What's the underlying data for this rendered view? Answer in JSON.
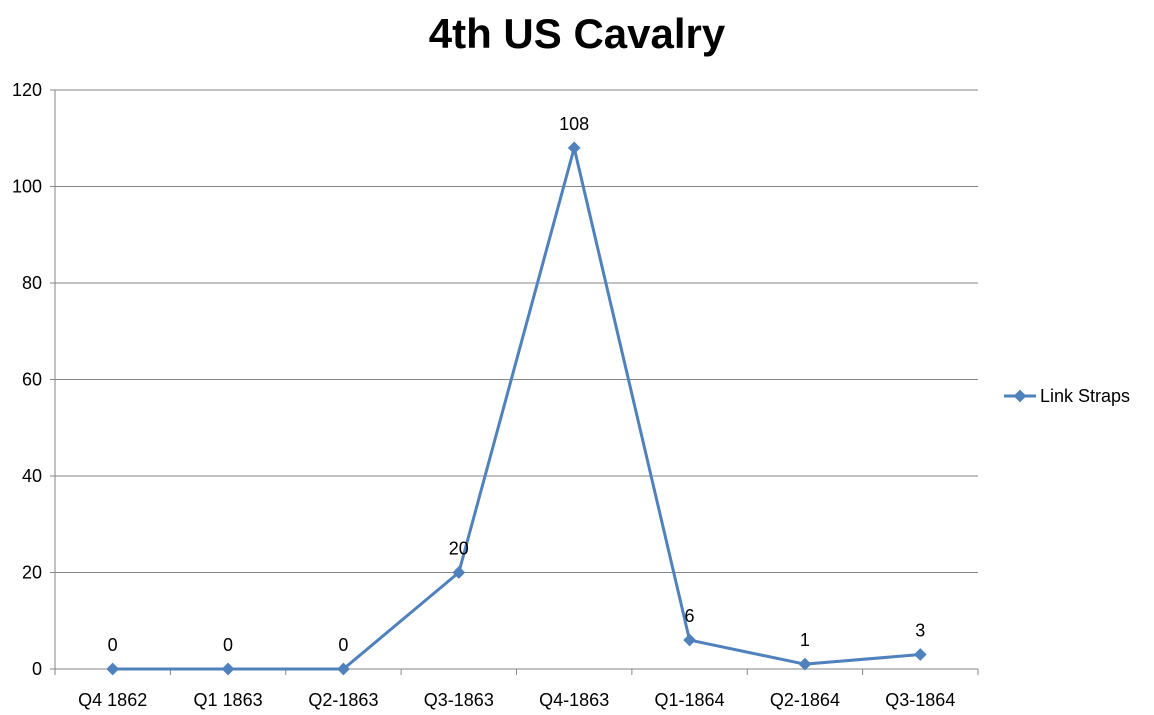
{
  "chart_data": {
    "type": "line",
    "title": "4th US Cavalry",
    "categories": [
      "Q4 1862",
      "Q1 1863",
      "Q2-1863",
      "Q3-1863",
      "Q4-1863",
      "Q1-1864",
      "Q2-1864",
      "Q3-1864"
    ],
    "series": [
      {
        "name": "Link Straps",
        "values": [
          0,
          0,
          0,
          20,
          108,
          6,
          1,
          3
        ],
        "color": "#4f81bd"
      }
    ],
    "ylim": [
      0,
      120
    ],
    "yticks": [
      0,
      20,
      40,
      60,
      80,
      100,
      120
    ],
    "grid": true,
    "legend_position": "right"
  }
}
